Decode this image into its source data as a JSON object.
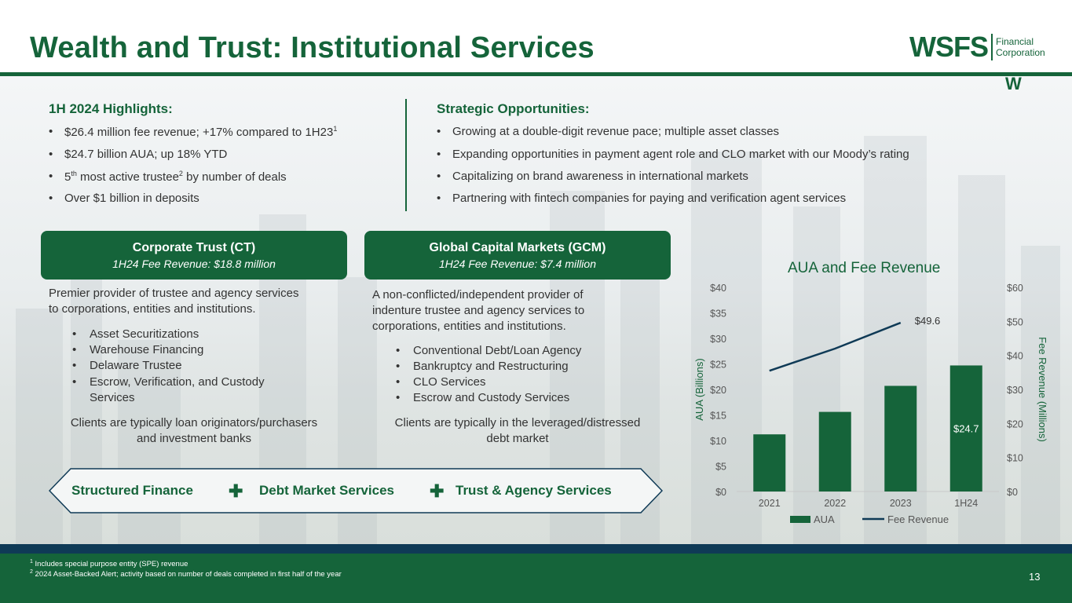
{
  "title": "Wealth and Trust: Institutional Services",
  "logo": {
    "name": "WSFS",
    "line1": "Financial",
    "line2": "Corporation",
    "mark": "W"
  },
  "highlights": {
    "heading": "1H 2024 Highlights:",
    "items": [
      {
        "text": "$26.4 million fee revenue;  +17% compared to 1H23",
        "sup": "1",
        "tail": ""
      },
      {
        "text": "$24.7 billion AUA; up 18% YTD",
        "sup": "",
        "tail": ""
      },
      {
        "text": "5",
        "sup": "th",
        "tail": " most active trustee",
        "sup2": "2",
        "tail2": " by number of deals"
      },
      {
        "text": "Over $1 billion in deposits",
        "sup": "",
        "tail": ""
      }
    ]
  },
  "strategic": {
    "heading": "Strategic Opportunities:",
    "items": [
      "Growing at a double-digit revenue pace; multiple asset classes",
      "Expanding opportunities in payment agent role and CLO market with our Moody’s rating",
      "Capitalizing on brand awareness in international markets",
      "Partnering with fintech companies for paying and verification agent services"
    ]
  },
  "ct": {
    "title": "Corporate Trust (CT)",
    "subtitle": "1H24 Fee Revenue: $18.8 million",
    "desc_line1": "Premier provider of trustee and agency services",
    "desc_line2": "to corporations, entities and institutions.",
    "items": [
      "Asset Securitizations",
      "Warehouse Financing",
      "Delaware Trustee",
      "Escrow, Verification, and Custody",
      "Services"
    ],
    "clients_line1": "Clients are typically loan originators/purchasers",
    "clients_line2": "and investment banks"
  },
  "gcm": {
    "title": "Global Capital Markets (GCM)",
    "subtitle": "1H24 Fee Revenue: $7.4 million",
    "desc_line1": "A non-conflicted/independent provider of",
    "desc_line2": "indenture trustee and agency services to",
    "desc_line3": "corporations, entities and institutions.",
    "items": [
      "Conventional Debt/Loan Agency",
      "Bankruptcy and Restructuring",
      "CLO Services",
      "Escrow and Custody Services"
    ],
    "clients_line1": "Clients are typically in the leveraged/distressed",
    "clients_line2": "debt market"
  },
  "banner": {
    "item1": "Structured Finance",
    "item2": "Debt Market Services",
    "item3": "Trust & Agency Services",
    "plus": "✚"
  },
  "footnotes": {
    "f1_sup": "1",
    "f1": " Includes special purpose entity (SPE) revenue",
    "f2_sup": "2",
    "f2": " 2024 Asset-Backed Alert; activity based on number of deals completed in first half of the year"
  },
  "page_number": "13",
  "colors": {
    "green": "#15643a",
    "navy": "#0f3a56"
  },
  "chart_data": {
    "type": "bar",
    "title": "AUA and Fee Revenue",
    "categories": [
      "2021",
      "2022",
      "2023",
      "1H24"
    ],
    "series": [
      {
        "name": "AUA",
        "type": "bar",
        "axis": "left",
        "values": [
          11.2,
          15.6,
          20.7,
          24.7
        ],
        "color": "#15643a"
      },
      {
        "name": "Fee Revenue",
        "type": "line",
        "axis": "right",
        "values": [
          35.5,
          42.0,
          49.6,
          null
        ],
        "color": "#0f3a56"
      }
    ],
    "data_labels": {
      "bar_last": "$24.7",
      "line_last": "$49.6"
    },
    "ylabel": "AUA (Billions)",
    "y2label": "Fee Revenue (Millions)",
    "ylim": [
      0,
      40
    ],
    "y2lim": [
      0,
      60
    ],
    "yticks": [
      "$0",
      "$5",
      "$10",
      "$15",
      "$20",
      "$25",
      "$30",
      "$35",
      "$40"
    ],
    "y2ticks": [
      "$0",
      "$10",
      "$20",
      "$30",
      "$40",
      "$50",
      "$60"
    ],
    "legend": [
      "AUA",
      "Fee Revenue"
    ]
  }
}
